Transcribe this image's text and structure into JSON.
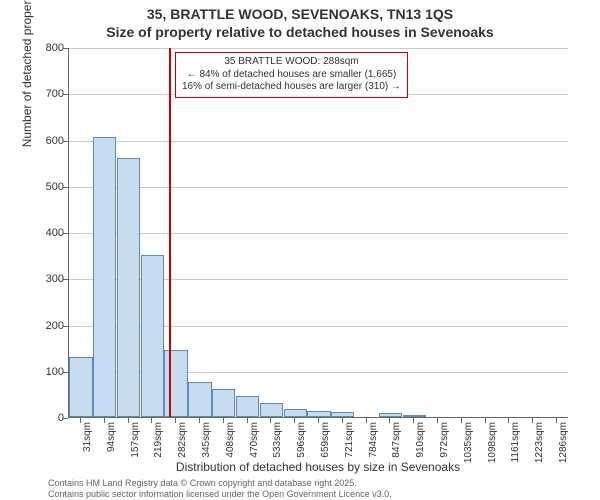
{
  "title_main": "35, BRATTLE WOOD, SEVENOAKS, TN13 1QS",
  "title_sub": "Size of property relative to detached houses in Sevenoaks",
  "y_axis_label": "Number of detached properties",
  "x_axis_label": "Distribution of detached houses by size in Sevenoaks",
  "footer_line1": "Contains HM Land Registry data © Crown copyright and database right 2025.",
  "footer_line2": "Contains public sector information licensed under the Open Government Licence v3.0.",
  "annotation": {
    "title": "35 BRATTLE WOOD: 288sqm",
    "line1": "← 84% of detached houses are smaller (1,665)",
    "line2": "16% of semi-detached houses are larger (310) →"
  },
  "chart": {
    "type": "histogram",
    "ylim": [
      0,
      800
    ],
    "ytick_step": 100,
    "bar_fill": "#c8dcf0",
    "bar_stroke": "#6088c0",
    "marker_color": "#cc0000",
    "marker_x_category_index": 4,
    "background": "#ffffff",
    "grid_color": "#cccccc",
    "title_fontsize": 14,
    "label_fontsize": 12,
    "tick_fontsize": 11,
    "x_categories": [
      "31sqm",
      "94sqm",
      "157sqm",
      "219sqm",
      "282sqm",
      "345sqm",
      "408sqm",
      "470sqm",
      "533sqm",
      "596sqm",
      "659sqm",
      "721sqm",
      "784sqm",
      "847sqm",
      "910sqm",
      "972sqm",
      "1035sqm",
      "1098sqm",
      "1161sqm",
      "1223sqm",
      "1286sqm"
    ],
    "values": [
      130,
      605,
      560,
      350,
      145,
      75,
      60,
      45,
      30,
      18,
      12,
      10,
      0,
      8,
      5,
      0,
      0,
      0,
      0,
      0,
      0
    ]
  }
}
